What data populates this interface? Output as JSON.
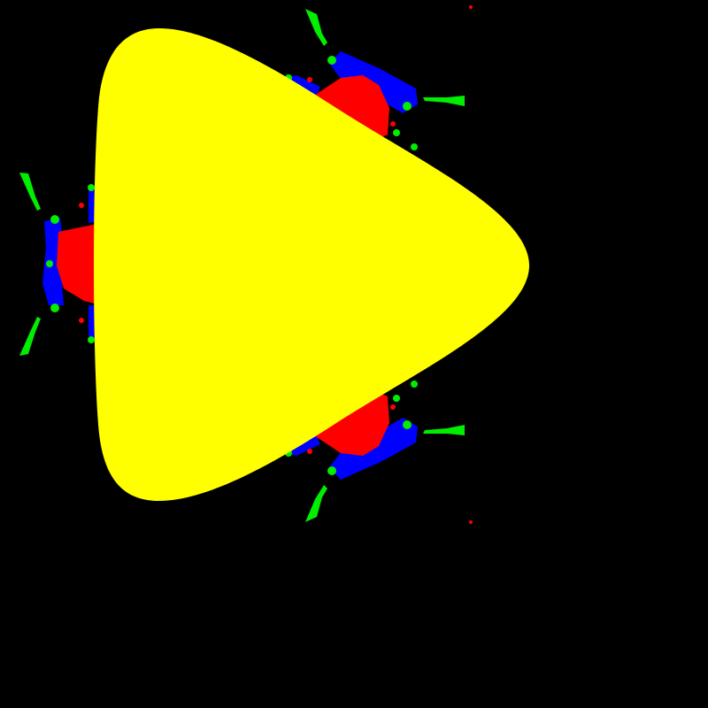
{
  "colors": {
    "background": "#000000",
    "main_body": "#ffff00",
    "red_lobes": "#ff0000",
    "blue_bands": "#0000ff",
    "green_spikes": "#00ee00"
  }
}
